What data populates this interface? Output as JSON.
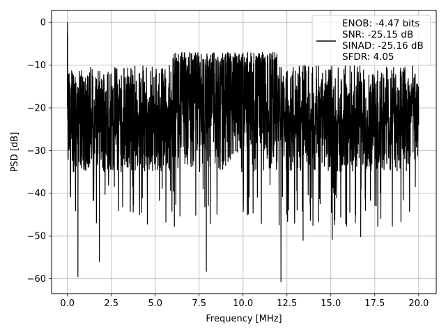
{
  "chart_data": {
    "type": "line",
    "title": "",
    "xlabel": "Frequency [MHz]",
    "ylabel": "PSD [dB]",
    "xlim": [
      -0.9,
      21.0
    ],
    "ylim": [
      -63.5,
      2.8
    ],
    "x_ticks": [
      0.0,
      2.5,
      5.0,
      7.5,
      10.0,
      12.5,
      15.0,
      17.5,
      20.0
    ],
    "x_tick_labels": [
      "0.0",
      "2.5",
      "5.0",
      "7.5",
      "10.0",
      "12.5",
      "15.0",
      "17.5",
      "20.0"
    ],
    "y_ticks": [
      0,
      -10,
      -20,
      -30,
      -40,
      -50,
      -60
    ],
    "y_tick_labels": [
      "0",
      "−10",
      "−20",
      "−30",
      "−40",
      "−50",
      "−60"
    ],
    "grid": true,
    "legend_position": "top-right",
    "series": [
      {
        "name": "ENOB: -4.47 bits\nSNR: -25.15 dB\nSINAD: -25.16 dB\nSFDR: 4.05",
        "legend_lines": [
          "ENOB: -4.47 bits",
          "SNR: -25.15 dB",
          "SINAD: -25.16 dB",
          "SFDR: 4.05"
        ],
        "color": "#000000",
        "noise_band_db": [
          -35,
          -10
        ],
        "x_range": [
          0.0,
          20.0
        ],
        "x": [
          0.0,
          0.01,
          0.05,
          0.1,
          0.6,
          1.82,
          7.91,
          12.16,
          13.42,
          15.08,
          16.7
        ],
        "values": [
          -2.5,
          0.0,
          -19.0,
          -12.0,
          -59.5,
          -56.0,
          -58.3,
          -60.7,
          -51.0,
          -50.8,
          -50.2
        ]
      }
    ]
  }
}
